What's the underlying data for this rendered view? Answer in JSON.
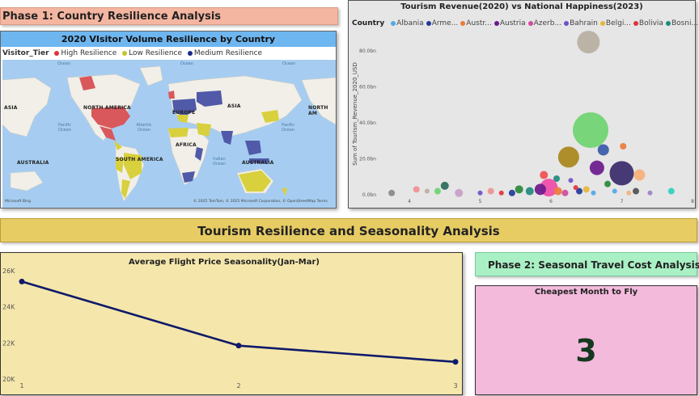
{
  "phase1_title": "Phase 1: Country Resilience Analysis",
  "map": {
    "title": "2020 VIsitor Volume Resilience by Country",
    "legend_title": "Visitor_Tier",
    "legend": [
      {
        "label": "High Resilience",
        "color": "#e0343a"
      },
      {
        "label": "Low Resilience",
        "color": "#c4c52c"
      },
      {
        "label": "Medium Resilience",
        "color": "#1c2a8a"
      }
    ],
    "region_labels": {
      "asia_left": "ASIA",
      "north_america": "NORTH AMERICA",
      "europe": "EUROPE",
      "asia_right": "ASIA",
      "north_am_right": "NORTH AM",
      "africa": "AFRICA",
      "australia_left": "AUSTRALIA",
      "south_america": "SOUTH AMERICA",
      "australia_right": "AUSTRALIA"
    },
    "ocean_labels": {
      "top_left": "Ocean",
      "top_mid": "Ocean",
      "top_right": "Ocean",
      "pacific_left": "Pacific Ocean",
      "atlantic": "Atlantic Ocean",
      "indian": "Indian Ocean",
      "pacific_right": "Pacific Ocean"
    },
    "colors": {
      "ocean": "#a6cdf1",
      "land": "#f1efe8",
      "high": "#d9585c",
      "low": "#d8d03c",
      "medium": "#505aa8"
    },
    "attribution_left": "Microsoft Bing",
    "attribution_right": "© 2025 TomTom, © 2025 Microsoft Corporation, © OpenStreetMap  Terms"
  },
  "chart_data": [
    {
      "type": "scatter",
      "title": "Tourism Revenue(2020) vs National Happiness(2023)",
      "ylabel": "Sum of Tourism_Revenue_2020_USD",
      "xlabel": "",
      "legend_title": "Country",
      "legend": [
        {
          "name": "Albania",
          "color": "#4fa8e8"
        },
        {
          "name": "Arme...",
          "color": "#22399c"
        },
        {
          "name": "Austr...",
          "color": "#ec7b3c"
        },
        {
          "name": "Austria",
          "color": "#6b1a8c"
        },
        {
          "name": "Azerb...",
          "color": "#d04aa0"
        },
        {
          "name": "Bahrain",
          "color": "#7050c8"
        },
        {
          "name": "Belgi...",
          "color": "#e8b53a"
        },
        {
          "name": "Bolivia",
          "color": "#e0343a"
        },
        {
          "name": "Bosni...",
          "color": "#1e8c7c"
        }
      ],
      "x_ticks": [
        "4",
        "5",
        "6",
        "7",
        "8"
      ],
      "y_ticks": [
        "0.0bn",
        "20.0bn",
        "40.0bn",
        "60.0bn",
        "80.0bn"
      ],
      "xlim": [
        3.6,
        8
      ],
      "ylim": [
        0,
        90
      ],
      "points": [
        {
          "x": 6.53,
          "y": 85,
          "size": 14,
          "color": "#b9afa2"
        },
        {
          "x": 6.56,
          "y": 36,
          "size": 22,
          "color": "#6fd470"
        },
        {
          "x": 6.25,
          "y": 21,
          "size": 13,
          "color": "#a8871a"
        },
        {
          "x": 6.74,
          "y": 25,
          "size": 7,
          "color": "#3a5aa8"
        },
        {
          "x": 7.02,
          "y": 27,
          "size": 4,
          "color": "#ec7b3c"
        },
        {
          "x": 6.65,
          "y": 15,
          "size": 9,
          "color": "#6b1a8c"
        },
        {
          "x": 7.0,
          "y": 12,
          "size": 15,
          "color": "#3a2a6a"
        },
        {
          "x": 7.25,
          "y": 11,
          "size": 7,
          "color": "#f7b07a"
        },
        {
          "x": 5.97,
          "y": 4,
          "size": 11,
          "color": "#f04aa8"
        },
        {
          "x": 5.9,
          "y": 11,
          "size": 5,
          "color": "#f05050"
        },
        {
          "x": 6.08,
          "y": 9,
          "size": 4,
          "color": "#1e8c7c"
        },
        {
          "x": 5.7,
          "y": 2,
          "size": 5,
          "color": "#1e8c7c"
        },
        {
          "x": 5.85,
          "y": 3,
          "size": 7,
          "color": "#6b1a8c"
        },
        {
          "x": 6.28,
          "y": 8,
          "size": 3,
          "color": "#7050c8"
        },
        {
          "x": 6.4,
          "y": 2,
          "size": 4,
          "color": "#22399c"
        },
        {
          "x": 6.5,
          "y": 3,
          "size": 4,
          "color": "#e8b53a"
        },
        {
          "x": 6.6,
          "y": 1,
          "size": 3,
          "color": "#4fa8e8"
        },
        {
          "x": 6.1,
          "y": 2,
          "size": 5,
          "color": "#ec7b3c"
        },
        {
          "x": 6.2,
          "y": 1,
          "size": 4,
          "color": "#d04aa0"
        },
        {
          "x": 5.45,
          "y": 1,
          "size": 4,
          "color": "#22399c"
        },
        {
          "x": 5.55,
          "y": 3,
          "size": 5,
          "color": "#2a8a3a"
        },
        {
          "x": 5.3,
          "y": 1,
          "size": 3,
          "color": "#e0343a"
        },
        {
          "x": 5.15,
          "y": 2,
          "size": 4,
          "color": "#f09090"
        },
        {
          "x": 5.0,
          "y": 1,
          "size": 3,
          "color": "#7050c8"
        },
        {
          "x": 4.7,
          "y": 1,
          "size": 5,
          "color": "#c8a0c8"
        },
        {
          "x": 4.5,
          "y": 5,
          "size": 5,
          "color": "#2a6a5a"
        },
        {
          "x": 4.4,
          "y": 2,
          "size": 4,
          "color": "#6fd470"
        },
        {
          "x": 4.25,
          "y": 2,
          "size": 3,
          "color": "#b9afa2"
        },
        {
          "x": 4.1,
          "y": 3,
          "size": 4,
          "color": "#f09090"
        },
        {
          "x": 3.75,
          "y": 1,
          "size": 4,
          "color": "#888888"
        },
        {
          "x": 6.9,
          "y": 2,
          "size": 3,
          "color": "#4fa8e8"
        },
        {
          "x": 7.1,
          "y": 1,
          "size": 3,
          "color": "#f7b07a"
        },
        {
          "x": 7.2,
          "y": 2,
          "size": 4,
          "color": "#505050"
        },
        {
          "x": 7.4,
          "y": 1,
          "size": 3,
          "color": "#a080c8"
        },
        {
          "x": 7.7,
          "y": 2,
          "size": 4,
          "color": "#30d0c0"
        },
        {
          "x": 6.8,
          "y": 6,
          "size": 4,
          "color": "#2a8a3a"
        },
        {
          "x": 6.35,
          "y": 4,
          "size": 3,
          "color": "#e0343a"
        }
      ]
    },
    {
      "type": "line",
      "title": "Average Flight Price Seasonality(Jan-Mar)",
      "x": [
        1,
        2,
        3
      ],
      "y": [
        25400,
        21850,
        20950
      ],
      "x_ticks": [
        "1",
        "2",
        "3"
      ],
      "y_ticks": [
        "20K",
        "22K",
        "24K",
        "26K"
      ],
      "ylim": [
        20000,
        26000
      ],
      "color": "#101a6a"
    }
  ],
  "section_banner": "Tourism Resilience and Seasonality Analysis",
  "phase2_title": "Phase 2: Seasonal Travel Cost Analysis",
  "kpi": {
    "title": "Cheapest Month to Fly",
    "value": "3"
  }
}
